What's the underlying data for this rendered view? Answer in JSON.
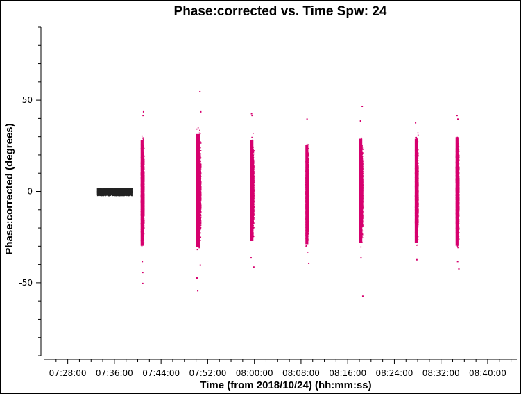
{
  "chart_data": {
    "type": "scatter",
    "title": "Phase:corrected vs. Time Spw: 24",
    "xlabel": "Time (from 2018/10/24) (hh:mm:ss)",
    "ylabel": "Phase:corrected (degrees)",
    "xlim": [
      "07:24:00",
      "08:45:00"
    ],
    "ylim": [
      -90,
      90
    ],
    "x_ticks": [
      "07:28:00",
      "07:36:00",
      "07:44:00",
      "07:52:00",
      "08:00:00",
      "08:08:00",
      "08:16:00",
      "08:24:00",
      "08:32:00",
      "08:40:00"
    ],
    "y_ticks": [
      -50,
      0,
      50
    ],
    "grid": false,
    "series": [
      {
        "color": "#222222",
        "scans": [
          {
            "start": "07:33:00",
            "end": "07:39:00",
            "y_min": -2,
            "y_max": 2,
            "outliers": []
          }
        ]
      },
      {
        "color": "#d6006e",
        "scans": [
          {
            "start": "07:40:30",
            "end": "07:41:00",
            "y_min": -35,
            "y_max": 33,
            "outliers": [
              44,
              42,
              -38,
              -44,
              -50
            ]
          },
          {
            "start": "07:50:00",
            "end": "07:50:45",
            "y_min": -36,
            "y_max": 37,
            "outliers": [
              55,
              44,
              -40,
              -47,
              -54
            ]
          },
          {
            "start": "07:59:15",
            "end": "07:59:50",
            "y_min": -32,
            "y_max": 33,
            "outliers": [
              43,
              42,
              -36,
              -41
            ]
          },
          {
            "start": "08:08:45",
            "end": "08:09:15",
            "y_min": -34,
            "y_max": 30,
            "outliers": [
              40,
              -39
            ]
          },
          {
            "start": "08:18:00",
            "end": "08:18:30",
            "y_min": -33,
            "y_max": 34,
            "outliers": [
              47,
              39,
              -36,
              -57
            ]
          },
          {
            "start": "08:27:30",
            "end": "08:28:00",
            "y_min": -33,
            "y_max": 34,
            "outliers": [
              38,
              -37
            ]
          },
          {
            "start": "08:34:30",
            "end": "08:35:00",
            "y_min": -35,
            "y_max": 35,
            "outliers": [
              42,
              40,
              -38,
              -42
            ]
          }
        ]
      }
    ]
  }
}
